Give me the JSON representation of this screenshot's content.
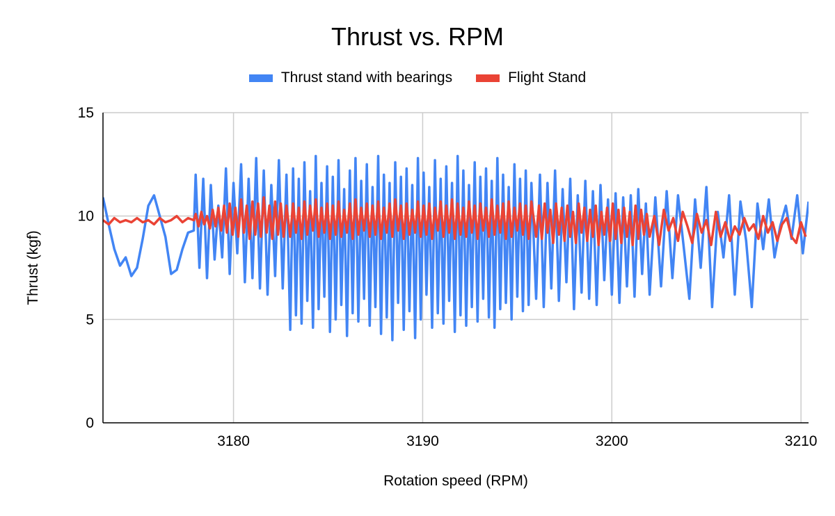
{
  "chart_data": {
    "type": "line",
    "title": "Thrust vs. RPM",
    "xlabel": "Rotation speed (RPM)",
    "ylabel": "Thrust (kgf)",
    "xlim": [
      3173.1,
      3210.4
    ],
    "ylim": [
      0,
      15
    ],
    "xticks": [
      3180,
      3190,
      3200,
      3210
    ],
    "yticks": [
      0,
      5,
      10,
      15
    ],
    "grid": true,
    "legend_position": "top",
    "series": [
      {
        "name": "Thrust stand with bearings",
        "color": "#4285F4",
        "segments": [
          {
            "x_start": 3173.1,
            "x_step": 0.3,
            "y": [
              10.9,
              9.6,
              8.4,
              7.6,
              8.0,
              7.1,
              7.5,
              8.9,
              10.5,
              11.0,
              10.0,
              9.0,
              7.2,
              7.4,
              8.4,
              9.2,
              9.3
            ]
          },
          {
            "x_start": 3178.0,
            "x_step": 0.2,
            "y": [
              12.0,
              7.5,
              11.8,
              7.0,
              11.5,
              7.9,
              10.5,
              8.0,
              12.3,
              7.2,
              11.6,
              8.2,
              12.5,
              6.8,
              11.8,
              7.0,
              12.8,
              6.5,
              12.2,
              6.2,
              11.5,
              7.1,
              12.7,
              6.5,
              12.0
            ]
          },
          {
            "x_start": 3183.0,
            "x_step": 0.15,
            "y": [
              4.5,
              12.3,
              5.2,
              11.8,
              4.8,
              12.6,
              5.9,
              11.2,
              4.6,
              12.9,
              5.5,
              11.6,
              6.1,
              12.4,
              4.4,
              11.9,
              5.0,
              12.7,
              5.7,
              11.3,
              4.2,
              12.2,
              5.3,
              12.8,
              4.9,
              11.7,
              6.0,
              12.5,
              4.7,
              11.4,
              5.6,
              12.9,
              4.3,
              12.0,
              5.1,
              11.6,
              4.0,
              12.6,
              5.8,
              11.9,
              4.5,
              12.3,
              5.4,
              11.5,
              4.1,
              12.8,
              5.0,
              12.1,
              6.2,
              11.4,
              4.6,
              12.7,
              5.3,
              11.8,
              4.8,
              12.4,
              5.9,
              11.6,
              4.4,
              12.9,
              5.2,
              12.2,
              4.7,
              11.5,
              5.6,
              12.6,
              4.9,
              11.9,
              6.0,
              12.3,
              5.1,
              11.7,
              4.6,
              12.8,
              5.5,
              12.0,
              5.8,
              11.4,
              5.0,
              12.5,
              6.1,
              11.8,
              5.4,
              12.2,
              5.7,
              11.6
            ]
          },
          {
            "x_start": 3196.0,
            "x_step": 0.2,
            "y": [
              6.0,
              12.0,
              5.6,
              11.6,
              6.5,
              12.2,
              5.9,
              11.3,
              6.8,
              11.8,
              5.5,
              11.0,
              6.3,
              11.7,
              6.0,
              11.2,
              5.7,
              11.5,
              6.9,
              10.8,
              6.2,
              11.1,
              5.8,
              10.9,
              6.6,
              11.0,
              6.1,
              11.3,
              7.2,
              10.6
            ]
          },
          {
            "x_start": 3202.0,
            "x_step": 0.3,
            "y": [
              6.2,
              10.9,
              6.6,
              11.2,
              7.0,
              11.0,
              8.5,
              6.0,
              10.8,
              7.5,
              11.4,
              5.6,
              10.2,
              8.0,
              11.0,
              6.2,
              10.7,
              8.8,
              5.6,
              10.6,
              8.4,
              10.8,
              8.0,
              9.5,
              10.5,
              8.9,
              11.0,
              8.2,
              10.7
            ]
          }
        ]
      },
      {
        "name": "Flight Stand",
        "color": "#EA4335",
        "segments": [
          {
            "x_start": 3173.1,
            "x_step": 0.3,
            "y": [
              9.8,
              9.6,
              9.9,
              9.7,
              9.8,
              9.7,
              9.9,
              9.7,
              9.8,
              9.6,
              9.9,
              9.7,
              9.8,
              10.0,
              9.7,
              9.9,
              9.8
            ]
          },
          {
            "x_start": 3178.0,
            "x_step": 0.15,
            "y": [
              10.1,
              9.5,
              10.2,
              9.6,
              10.0,
              9.4,
              10.3,
              9.5,
              10.4,
              9.3,
              10.5,
              9.2,
              10.6,
              9.1,
              10.4,
              9.0,
              10.8,
              9.2,
              10.5,
              8.9,
              10.7,
              9.1,
              10.6,
              9.0,
              10.9,
              9.2,
              10.5,
              8.9,
              10.7,
              9.1,
              10.6,
              9.0,
              10.5
            ]
          },
          {
            "x_start": 3183.0,
            "x_step": 0.15,
            "y": [
              9.0,
              10.6,
              9.2,
              10.4,
              8.9,
              10.7,
              9.1,
              10.5,
              9.3,
              10.8,
              9.0,
              10.4,
              9.2,
              10.6,
              8.9,
              10.5,
              9.1,
              10.7,
              9.0,
              10.3,
              9.2,
              10.6,
              8.9,
              10.8,
              9.1,
              10.4,
              9.3,
              10.6,
              9.0,
              10.5,
              9.1,
              10.7,
              8.9,
              10.4,
              9.2,
              10.6,
              9.0,
              10.8,
              9.3,
              10.5,
              8.9,
              10.6,
              9.1,
              10.3,
              9.2,
              10.7,
              9.0,
              10.5,
              9.1,
              10.6,
              8.9,
              10.4,
              9.3,
              10.7,
              9.0,
              10.5,
              9.2,
              10.8,
              8.9,
              10.6,
              9.1,
              10.4,
              9.0,
              10.7,
              9.2,
              10.5,
              8.9,
              10.6,
              9.3,
              10.4,
              9.0,
              10.8,
              9.1,
              10.5,
              9.2,
              10.6,
              8.9,
              10.7,
              9.0,
              10.4,
              9.3,
              10.6,
              9.1,
              10.5,
              8.9,
              10.7
            ]
          },
          {
            "x_start": 3196.0,
            "x_step": 0.15,
            "y": [
              9.0,
              10.5,
              8.9,
              10.6,
              9.2,
              10.3,
              8.7,
              10.6,
              9.1,
              10.4,
              8.8,
              10.5,
              9.0,
              10.2,
              8.7,
              10.6,
              9.2,
              10.4,
              8.8,
              10.3,
              9.0,
              10.5,
              8.6,
              10.2,
              9.1,
              10.4,
              8.8,
              10.6,
              8.9,
              10.3,
              8.7,
              10.4,
              9.0,
              10.2,
              8.6,
              10.5,
              8.9,
              10.3,
              9.1,
              10.1
            ]
          },
          {
            "x_start": 3202.0,
            "x_step": 0.25,
            "y": [
              9.0,
              10.0,
              8.6,
              10.3,
              9.3,
              9.9,
              8.8,
              10.2,
              9.5,
              8.7,
              10.1,
              9.2,
              9.8,
              8.6,
              10.2,
              9.0,
              9.7,
              8.8,
              9.5,
              9.1,
              9.9,
              9.3,
              9.6,
              8.9,
              10.0,
              9.2,
              9.7,
              8.8,
              9.6,
              9.9,
              9.0,
              8.7,
              9.7,
              9.0
            ]
          }
        ]
      }
    ]
  }
}
